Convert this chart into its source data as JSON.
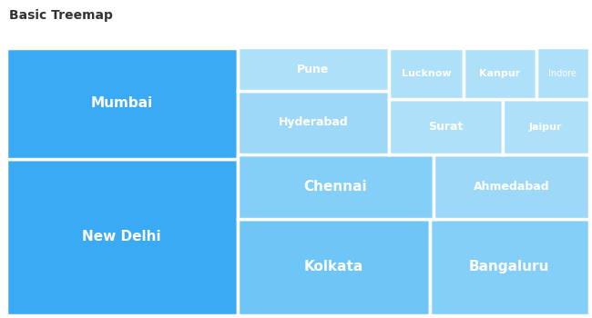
{
  "title": "Basic Treemap",
  "title_fontsize": 10,
  "title_color": "#333333",
  "background_color": "#ffffff",
  "border_color": "#ffffff",
  "border_width": 2.5,
  "text_color": "#ffffff",
  "cities": [
    {
      "name": "New Delhi",
      "value": 29000000,
      "color": "#3AAAF5"
    },
    {
      "name": "Mumbai",
      "value": 20600000,
      "color": "#3AAAF5"
    },
    {
      "name": "Kolkata",
      "value": 14800000,
      "color": "#6EC6F7"
    },
    {
      "name": "Bangaluru",
      "value": 12300000,
      "color": "#84CFF7"
    },
    {
      "name": "Chennai",
      "value": 10100000,
      "color": "#84CFF7"
    },
    {
      "name": "Ahmedabad",
      "value": 8000000,
      "color": "#9DD8F8"
    },
    {
      "name": "Hyderabad",
      "value": 7750000,
      "color": "#9DD8F8"
    },
    {
      "name": "Pune",
      "value": 5200000,
      "color": "#AEE0F9"
    },
    {
      "name": "Surat",
      "value": 5000000,
      "color": "#AEE0F9"
    },
    {
      "name": "Jaipur",
      "value": 3800000,
      "color": "#AEE0F9"
    },
    {
      "name": "Lucknow",
      "value": 3100000,
      "color": "#AEE0F9"
    },
    {
      "name": "Kanpur",
      "value": 3000000,
      "color": "#AEE0F9"
    },
    {
      "name": "Indore",
      "value": 2200000,
      "color": "#AEE0F9"
    }
  ],
  "figsize": [
    6.5,
    3.5
  ],
  "dpi": 100
}
